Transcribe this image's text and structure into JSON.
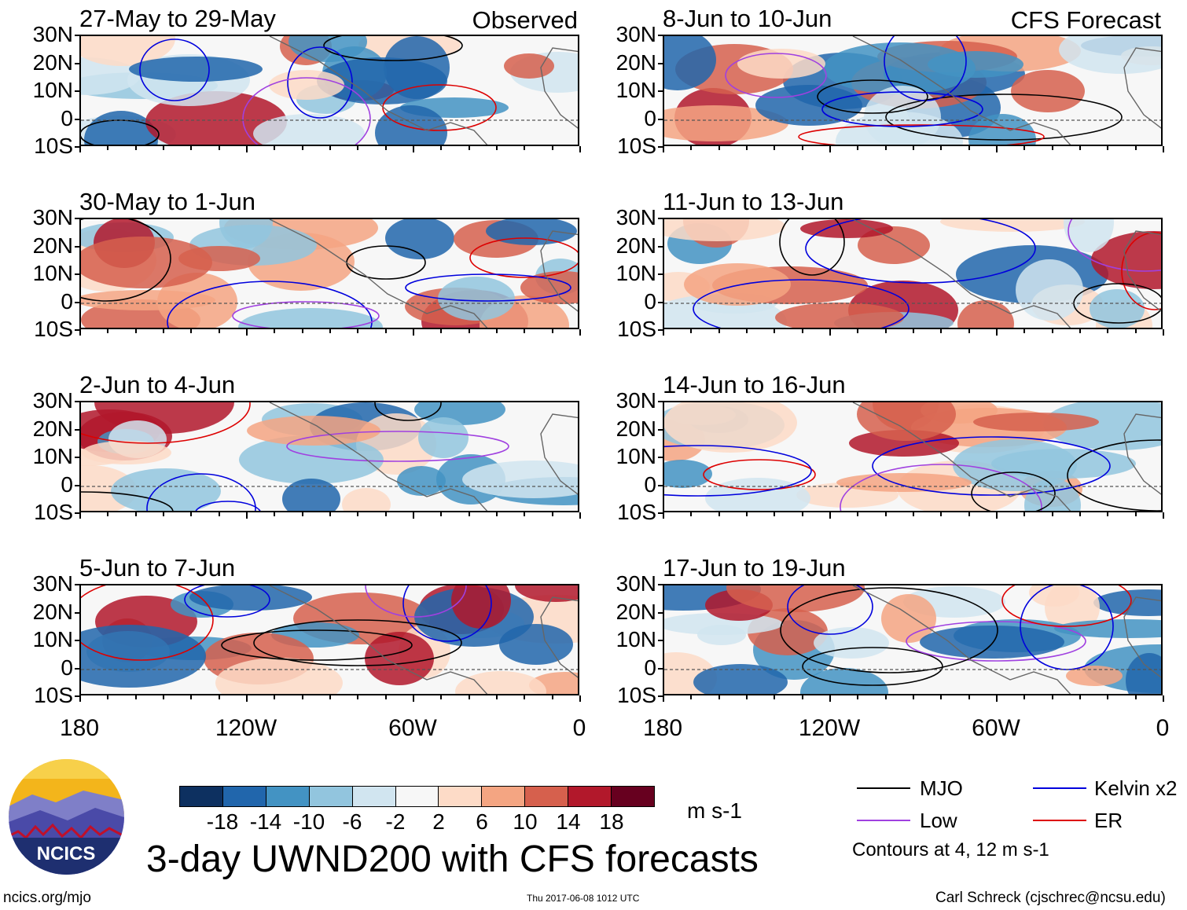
{
  "title": "3-day UWND200 with CFS forecasts",
  "units_label": "m s-1",
  "observed_label": "Observed",
  "forecast_label": "CFS Forecast",
  "y_axis_labels": [
    "30N",
    "20N",
    "10N",
    "0",
    "10S"
  ],
  "x_axis_labels": [
    "180",
    "120W",
    "60W",
    "0"
  ],
  "observed_panels": [
    "27-May to 29-May",
    "30-May to 1-Jun",
    "2-Jun to 4-Jun",
    "5-Jun to 7-Jun"
  ],
  "forecast_panels": [
    "8-Jun to 10-Jun",
    "11-Jun to 13-Jun",
    "14-Jun to 16-Jun",
    "17-Jun to 19-Jun"
  ],
  "colorbar": {
    "labels": [
      "-18",
      "-14",
      "-10",
      "-6",
      "-2",
      "2",
      "6",
      "10",
      "14",
      "18"
    ],
    "colors": [
      "#0d3060",
      "#2166ac",
      "#4393c3",
      "#92c5de",
      "#d1e5f0",
      "#f7f7f7",
      "#fddbc7",
      "#f4a582",
      "#d6604d",
      "#b2182b",
      "#67001f"
    ]
  },
  "legend": {
    "items": [
      {
        "label": "MJO",
        "color": "#000000"
      },
      {
        "label": "Kelvin x2",
        "color": "#0000dd"
      },
      {
        "label": "Low",
        "color": "#a040e0"
      },
      {
        "label": "ER",
        "color": "#dd0000"
      }
    ],
    "note": "Contours at 4, 12 m s-1"
  },
  "logo_text": "NCICS",
  "footer": {
    "left": "ncics.org/mjo",
    "center": "Thu 2017-06-08 1012 UTC",
    "right": "Carl Schreck (cjschrec@ncsu.edu)"
  }
}
